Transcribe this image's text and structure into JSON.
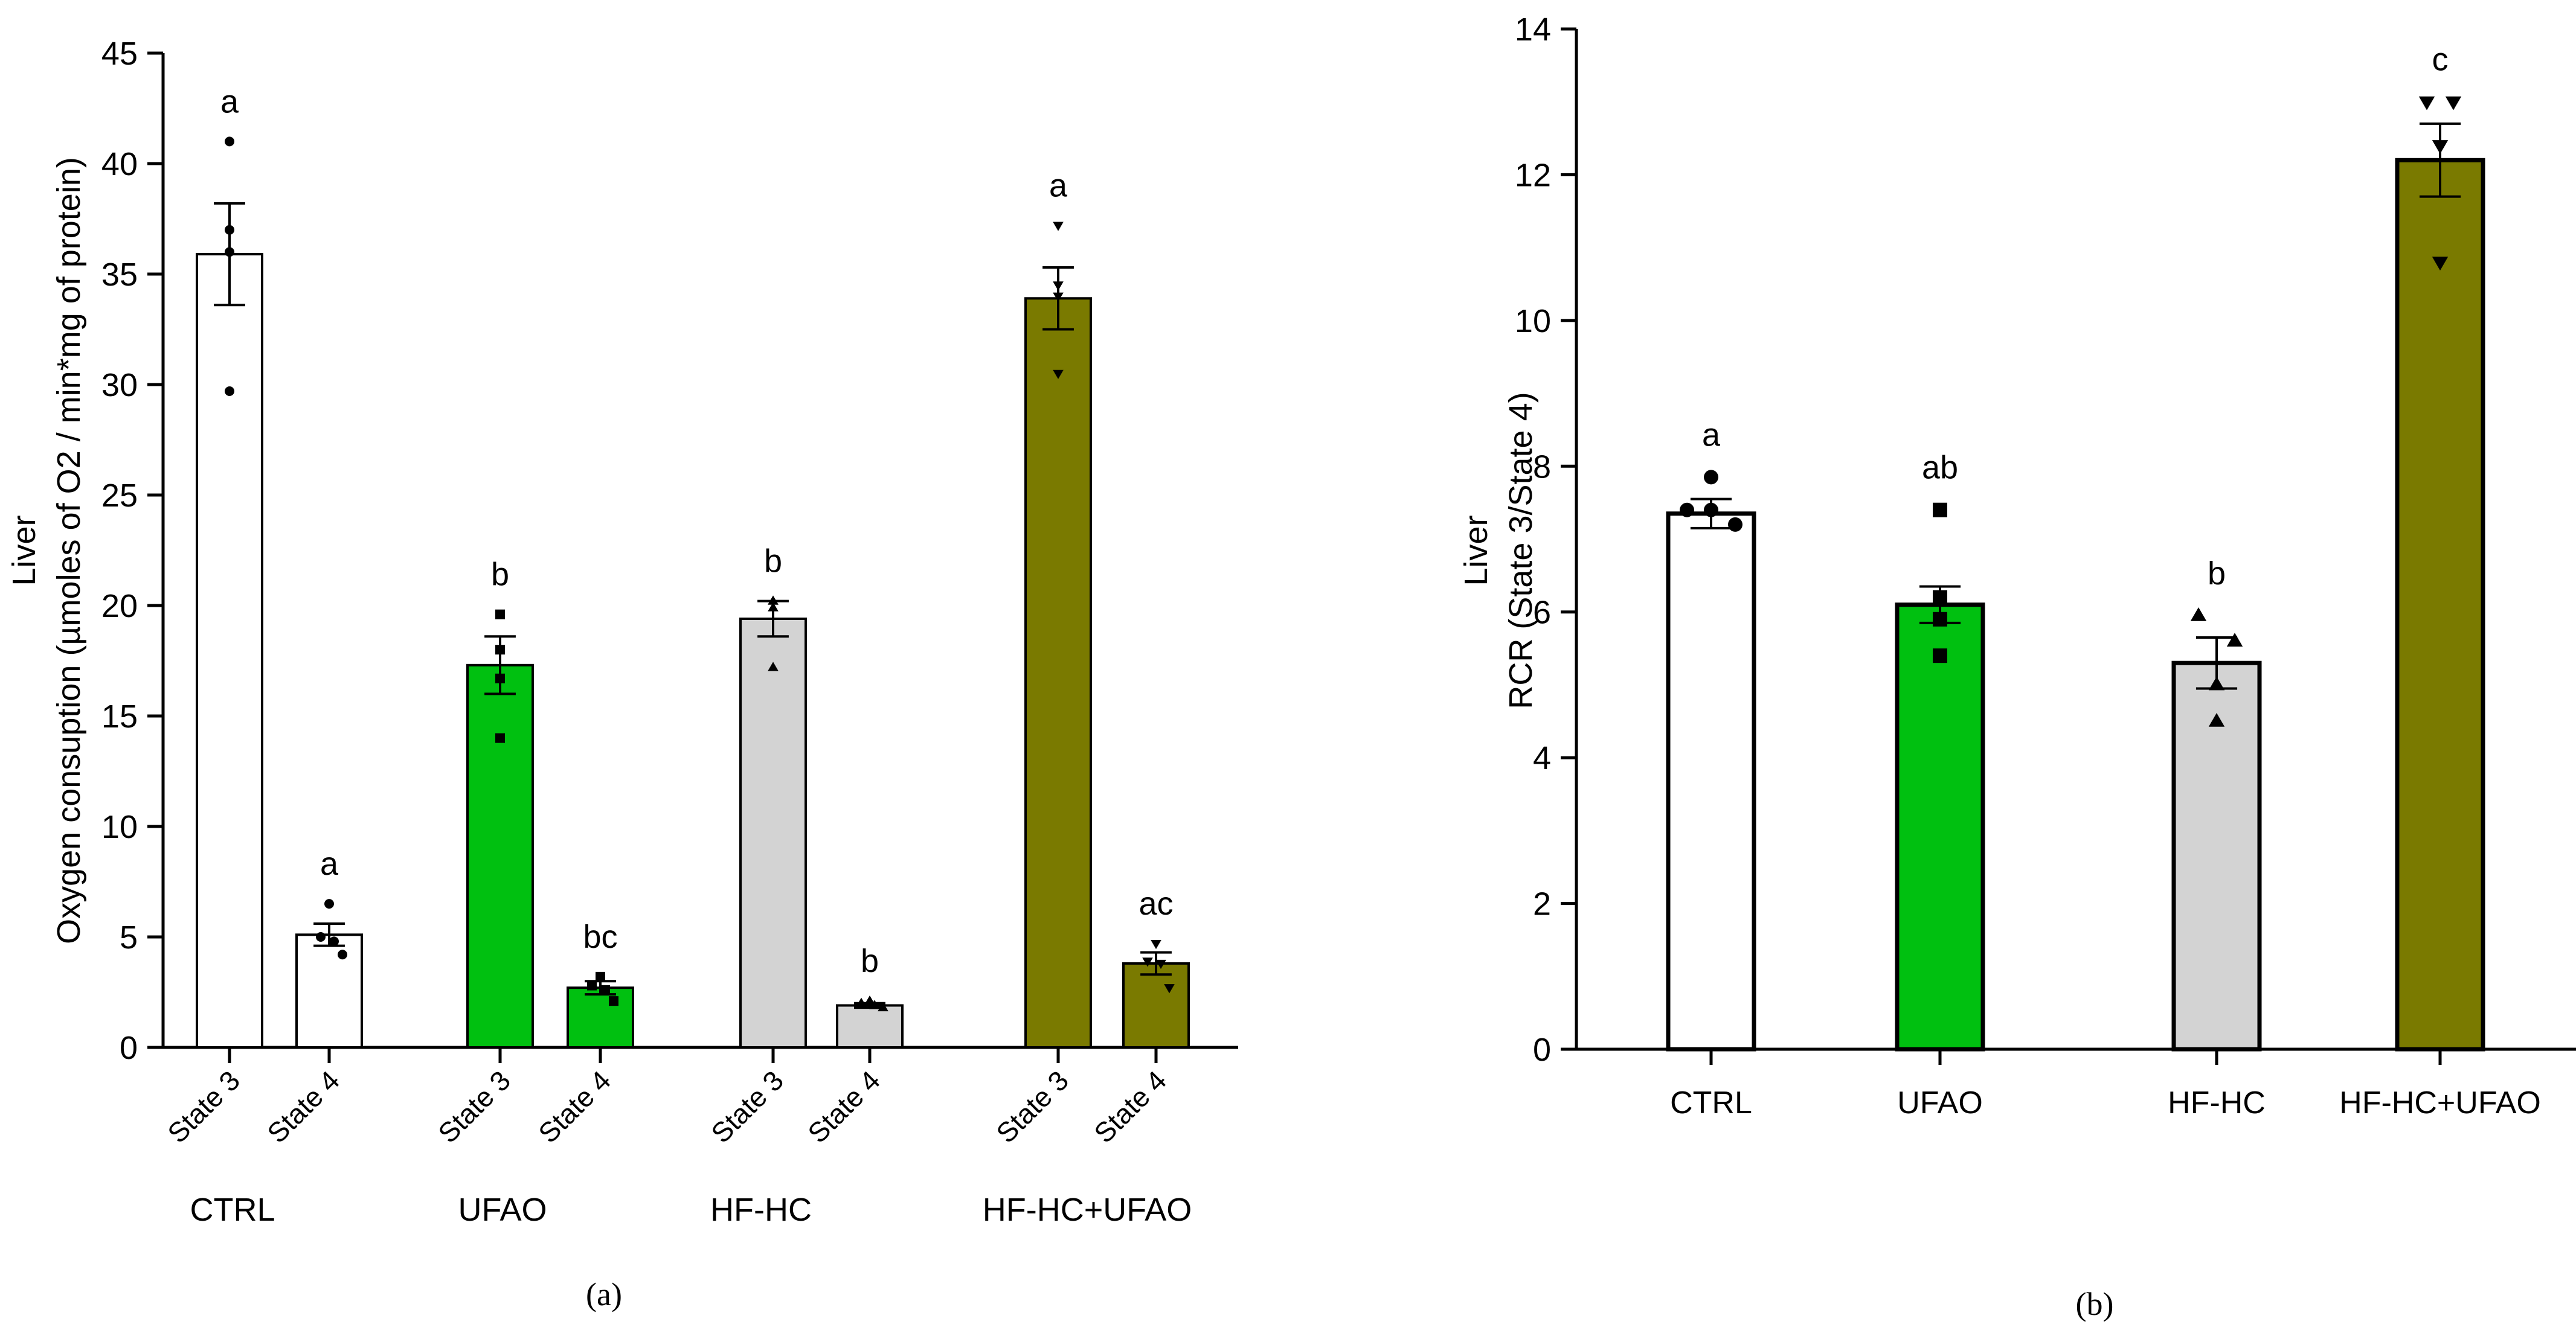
{
  "chart_data": [
    {
      "id": "a",
      "type": "bar",
      "ylabel_line1": "Liver",
      "ylabel_line2": "Oxygen consuption (µmoles of O2  / min*mg of protein)",
      "ylim": [
        0,
        45
      ],
      "yticks": [
        0,
        5,
        10,
        15,
        20,
        25,
        30,
        35,
        40,
        45
      ],
      "groups": [
        "CTRL",
        "UFAO",
        "HF-HC",
        "HF-HC+UFAO"
      ],
      "bar_labels": [
        "State 3",
        "State 4"
      ],
      "caption": "(a)",
      "bars": [
        {
          "group": "CTRL",
          "label": "State 3",
          "value": 35.9,
          "sem": 2.3,
          "letter": "a",
          "color": "#ffffff",
          "marker": "circle",
          "points": [
            41.0,
            37.0,
            36.0,
            29.7
          ]
        },
        {
          "group": "CTRL",
          "label": "State 4",
          "value": 5.1,
          "sem": 0.5,
          "letter": "a",
          "color": "#ffffff",
          "marker": "circle",
          "points": [
            6.5,
            5.0,
            4.8,
            4.2
          ]
        },
        {
          "group": "UFAO",
          "label": "State 3",
          "value": 17.3,
          "sem": 1.3,
          "letter": "b",
          "color": "#00c010",
          "marker": "square",
          "points": [
            19.6,
            18.0,
            16.7,
            14.0
          ]
        },
        {
          "group": "UFAO",
          "label": "State 4",
          "value": 2.7,
          "sem": 0.3,
          "letter": "bc",
          "color": "#00c010",
          "marker": "square",
          "points": [
            3.2,
            2.8,
            2.6,
            2.1
          ]
        },
        {
          "group": "HF-HC",
          "label": "State 3",
          "value": 19.4,
          "sem": 0.8,
          "letter": "b",
          "color": "#d3d3d3",
          "marker": "triangle-up",
          "points": [
            20.2,
            20.2,
            19.9,
            17.2
          ]
        },
        {
          "group": "HF-HC",
          "label": "State 4",
          "value": 1.9,
          "sem": 0.1,
          "letter": "b",
          "color": "#d3d3d3",
          "marker": "triangle-up",
          "points": [
            2.1,
            2.0,
            1.9,
            1.8
          ]
        },
        {
          "group": "HF-HC+UFAO",
          "label": "State 3",
          "value": 33.9,
          "sem": 1.4,
          "letter": "a",
          "color": "#7a7a00",
          "marker": "triangle-down",
          "points": [
            37.2,
            34.5,
            34.0,
            30.5
          ]
        },
        {
          "group": "HF-HC+UFAO",
          "label": "State 4",
          "value": 3.8,
          "sem": 0.5,
          "letter": "ac",
          "color": "#7a7a00",
          "marker": "triangle-down",
          "points": [
            4.7,
            3.9,
            3.8,
            2.7
          ]
        }
      ]
    },
    {
      "id": "b",
      "type": "bar",
      "ylabel_line1": "Liver",
      "ylabel_line2": "RCR (State 3/State 4)",
      "ylim": [
        0,
        14
      ],
      "yticks": [
        0,
        2,
        4,
        6,
        8,
        10,
        12,
        14
      ],
      "caption": "(b)",
      "bars": [
        {
          "group": "CTRL",
          "value": 7.35,
          "sem": 0.2,
          "letter": "a",
          "color": "#ffffff",
          "marker": "circle",
          "points": [
            7.85,
            7.4,
            7.4,
            7.2
          ]
        },
        {
          "group": "UFAO",
          "value": 6.1,
          "sem": 0.25,
          "letter": "ab",
          "color": "#00c010",
          "marker": "square",
          "points": [
            7.4,
            6.2,
            5.9,
            5.4
          ]
        },
        {
          "group": "HF-HC",
          "value": 5.3,
          "sem": 0.35,
          "letter": "b",
          "color": "#d3d3d3",
          "marker": "triangle-up",
          "points": [
            5.95,
            5.6,
            5.0,
            4.5
          ]
        },
        {
          "group": "HF-HC+UFAO",
          "value": 12.2,
          "sem": 0.5,
          "letter": "c",
          "color": "#7a7a00",
          "marker": "triangle-down",
          "points": [
            13.0,
            13.0,
            12.4,
            10.8
          ]
        }
      ]
    }
  ]
}
